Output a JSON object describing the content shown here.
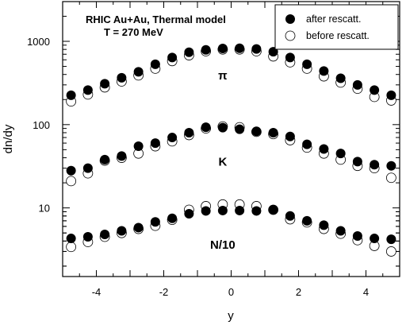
{
  "chart_data": {
    "type": "scatter",
    "xlabel": "y",
    "ylabel": "dn/dy",
    "xlim": [
      -5.0,
      5.0
    ],
    "ylim": [
      1.5,
      3000
    ],
    "yscale": "log",
    "x_ticks": [
      -4,
      -2,
      0,
      2,
      4
    ],
    "y_ticks": [
      10,
      100,
      1000
    ],
    "grid": false,
    "legend_position": "top-right",
    "annotation_lines": [
      "RHIC Au+Au, Thermal model",
      "T = 270 MeV"
    ],
    "particle_labels": [
      {
        "text": "π",
        "x": -0.25,
        "y": 390
      },
      {
        "text": "K",
        "x": -0.25,
        "y": 36
      },
      {
        "text": "N/10",
        "x": -0.25,
        "y": 3.6
      }
    ],
    "series": [
      {
        "name": "after rescatt.",
        "marker": "filled-circle",
        "groups": [
          {
            "particle": "π",
            "x": [
              -4.75,
              -4.25,
              -3.75,
              -3.25,
              -2.75,
              -2.25,
              -1.75,
              -1.25,
              -0.75,
              -0.25,
              0.25,
              0.75,
              1.25,
              1.75,
              2.25,
              2.75,
              3.25,
              3.75,
              4.25,
              4.75
            ],
            "y": [
              225,
              260,
              310,
              365,
              430,
              530,
              640,
              740,
              790,
              820,
              825,
              810,
              750,
              640,
              530,
              440,
              360,
              300,
              260,
              225
            ]
          },
          {
            "particle": "K",
            "x": [
              -4.75,
              -4.25,
              -3.75,
              -3.25,
              -2.75,
              -2.25,
              -1.75,
              -1.25,
              -0.75,
              -0.25,
              0.25,
              0.75,
              1.25,
              1.75,
              2.25,
              2.75,
              3.25,
              3.75,
              4.25,
              4.75
            ],
            "y": [
              28,
              30,
              38,
              42,
              55,
              60,
              70,
              80,
              93,
              92,
              88,
              83,
              80,
              72,
              58,
              51,
              45,
              36,
              33,
              32
            ]
          },
          {
            "particle": "N/10",
            "x": [
              -4.75,
              -4.25,
              -3.75,
              -3.25,
              -2.75,
              -2.25,
              -1.75,
              -1.25,
              -0.75,
              -0.25,
              0.25,
              0.75,
              1.25,
              1.75,
              2.25,
              2.75,
              3.25,
              3.75,
              4.25,
              4.75
            ],
            "y": [
              4.3,
              4.5,
              4.8,
              5.3,
              5.8,
              6.8,
              7.5,
              8.5,
              9.2,
              9.3,
              9.3,
              9.2,
              9.5,
              8.0,
              7.0,
              6.2,
              5.3,
              4.6,
              4.3,
              4.2
            ]
          }
        ]
      },
      {
        "name": "before rescatt.",
        "marker": "open-circle",
        "groups": [
          {
            "particle": "π",
            "x": [
              -4.75,
              -4.25,
              -3.75,
              -3.25,
              -2.75,
              -2.25,
              -1.75,
              -1.25,
              -0.75,
              -0.25,
              0.25,
              0.75,
              1.25,
              1.75,
              2.25,
              2.75,
              3.25,
              3.75,
              4.25,
              4.75
            ],
            "y": [
              190,
              230,
              280,
              330,
              390,
              470,
              580,
              680,
              760,
              800,
              800,
              760,
              660,
              560,
              470,
              380,
              320,
              270,
              215,
              195
            ]
          },
          {
            "particle": "K",
            "x": [
              -4.75,
              -4.25,
              -3.75,
              -3.25,
              -2.75,
              -2.25,
              -1.75,
              -1.25,
              -0.75,
              -0.25,
              0.25,
              0.75,
              1.25,
              1.75,
              2.25,
              2.75,
              3.25,
              3.75,
              4.25,
              4.75
            ],
            "y": [
              21,
              26,
              37,
              40,
              45,
              55,
              63,
              75,
              90,
              95,
              93,
              82,
              77,
              65,
              53,
              45,
              38,
              32,
              30,
              23
            ]
          },
          {
            "particle": "N/10",
            "x": [
              -4.75,
              -4.25,
              -3.75,
              -3.25,
              -2.75,
              -2.25,
              -1.75,
              -1.25,
              -0.75,
              -0.25,
              0.25,
              0.75,
              1.25,
              1.75,
              2.25,
              2.75,
              3.25,
              3.75,
              4.25,
              4.75
            ],
            "y": [
              3.4,
              3.9,
              4.5,
              5.0,
              5.6,
              6.1,
              7.2,
              9.5,
              10.5,
              11.0,
              11.0,
              10.5,
              9.5,
              7.3,
              6.7,
              5.6,
              4.9,
              4.1,
              3.5,
              3.0
            ]
          }
        ]
      }
    ]
  }
}
